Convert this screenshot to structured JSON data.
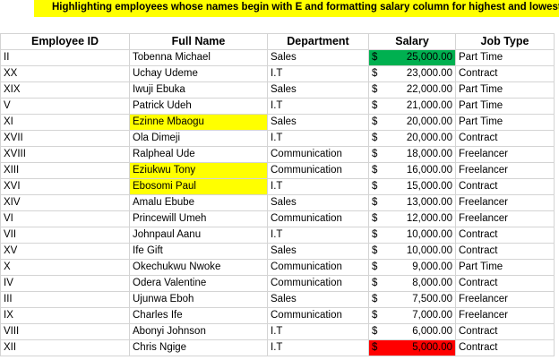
{
  "banner": "Highlighting employees whose names begin with E and formatting salary column for highest and lowest",
  "headers": {
    "id": "Employee ID",
    "name": "Full Name",
    "dept": "Department",
    "salary": "Salary",
    "job": "Job Type"
  },
  "currency": "$",
  "colors": {
    "name_highlight": "#ffff00",
    "max_salary": "#00b050",
    "min_salary": "#ff0000"
  },
  "rows": [
    {
      "id": "II",
      "name": "Tobenna Michael",
      "dept": "Sales",
      "salary": "25,000.00",
      "job": "Part Time",
      "name_hl": false,
      "sal_hl": "max"
    },
    {
      "id": "XX",
      "name": "Uchay Udeme",
      "dept": "I.T",
      "salary": "23,000.00",
      "job": "Contract",
      "name_hl": false,
      "sal_hl": ""
    },
    {
      "id": "XIX",
      "name": "Iwuji Ebuka",
      "dept": "Sales",
      "salary": "22,000.00",
      "job": "Part Time",
      "name_hl": false,
      "sal_hl": ""
    },
    {
      "id": "V",
      "name": "Patrick Udeh",
      "dept": "I.T",
      "salary": "21,000.00",
      "job": "Part Time",
      "name_hl": false,
      "sal_hl": ""
    },
    {
      "id": "XI",
      "name": "Ezinne Mbaogu",
      "dept": "Sales",
      "salary": "20,000.00",
      "job": "Part Time",
      "name_hl": true,
      "sal_hl": ""
    },
    {
      "id": "XVII",
      "name": "Ola Dimeji",
      "dept": "I.T",
      "salary": "20,000.00",
      "job": "Contract",
      "name_hl": false,
      "sal_hl": ""
    },
    {
      "id": "XVIII",
      "name": "Ralpheal Ude",
      "dept": "Communication",
      "salary": "18,000.00",
      "job": "Freelancer",
      "name_hl": false,
      "sal_hl": ""
    },
    {
      "id": "XIII",
      "name": "Eziukwu Tony",
      "dept": "Communication",
      "salary": "16,000.00",
      "job": "Freelancer",
      "name_hl": true,
      "sal_hl": ""
    },
    {
      "id": "XVI",
      "name": "Ebosomi Paul",
      "dept": "I.T",
      "salary": "15,000.00",
      "job": "Contract",
      "name_hl": true,
      "sal_hl": ""
    },
    {
      "id": "XIV",
      "name": "Amalu Ebube",
      "dept": "Sales",
      "salary": "13,000.00",
      "job": "Freelancer",
      "name_hl": false,
      "sal_hl": ""
    },
    {
      "id": "VI",
      "name": "Princewill Umeh",
      "dept": "Communication",
      "salary": "12,000.00",
      "job": "Freelancer",
      "name_hl": false,
      "sal_hl": ""
    },
    {
      "id": "VII",
      "name": "Johnpaul Aanu",
      "dept": "I.T",
      "salary": "10,000.00",
      "job": "Contract",
      "name_hl": false,
      "sal_hl": ""
    },
    {
      "id": "XV",
      "name": "Ife Gift",
      "dept": "Sales",
      "salary": "10,000.00",
      "job": "Contract",
      "name_hl": false,
      "sal_hl": ""
    },
    {
      "id": "X",
      "name": "Okechukwu Nwoke",
      "dept": "Communication",
      "salary": "9,000.00",
      "job": "Part Time",
      "name_hl": false,
      "sal_hl": ""
    },
    {
      "id": "IV",
      "name": "Odera Valentine",
      "dept": "Communication",
      "salary": "8,000.00",
      "job": "Contract",
      "name_hl": false,
      "sal_hl": ""
    },
    {
      "id": "III",
      "name": "Ujunwa Eboh",
      "dept": "Sales",
      "salary": "7,500.00",
      "job": "Freelancer",
      "name_hl": false,
      "sal_hl": ""
    },
    {
      "id": "IX",
      "name": "Charles Ife",
      "dept": "Communication",
      "salary": "7,000.00",
      "job": "Freelancer",
      "name_hl": false,
      "sal_hl": ""
    },
    {
      "id": "VIII",
      "name": "Abonyi Johnson",
      "dept": "I.T",
      "salary": "6,000.00",
      "job": "Contract",
      "name_hl": false,
      "sal_hl": ""
    },
    {
      "id": "XII",
      "name": "Chris Ngige",
      "dept": "I.T",
      "salary": "5,000.00",
      "job": "Contract",
      "name_hl": false,
      "sal_hl": "min"
    }
  ]
}
